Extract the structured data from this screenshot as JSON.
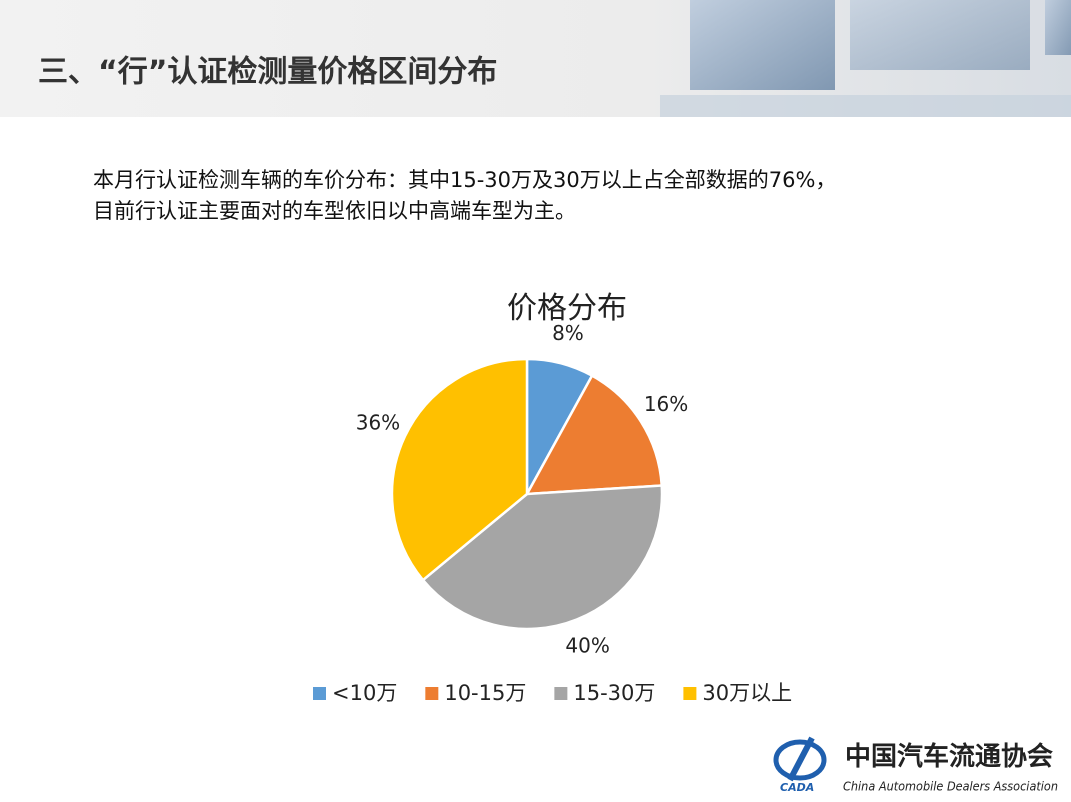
{
  "header": {
    "title": "三、“行”认证检测量价格区间分布"
  },
  "body": {
    "lines": [
      "本月行认证检测车辆的车价分布：其中15-30万及30万以上占全部数据的76%，",
      "目前行认证主要面对的车型依旧以中高端车型为主。"
    ]
  },
  "chart_data": {
    "type": "pie",
    "title": "价格分布",
    "categories": [
      "<10万",
      "10-15万",
      "15-30万",
      "30万以上"
    ],
    "values": [
      8,
      16,
      40,
      36
    ],
    "value_labels": [
      "8%",
      "16%",
      "40%",
      "36%"
    ],
    "colors": [
      "#5b9bd5",
      "#ed7d31",
      "#a5a5a5",
      "#ffc000"
    ],
    "legend": "bottom"
  },
  "logo": {
    "name": "中国汽车流通协会",
    "english": "China Automobile Dealers Association",
    "abbr": "CADA"
  }
}
